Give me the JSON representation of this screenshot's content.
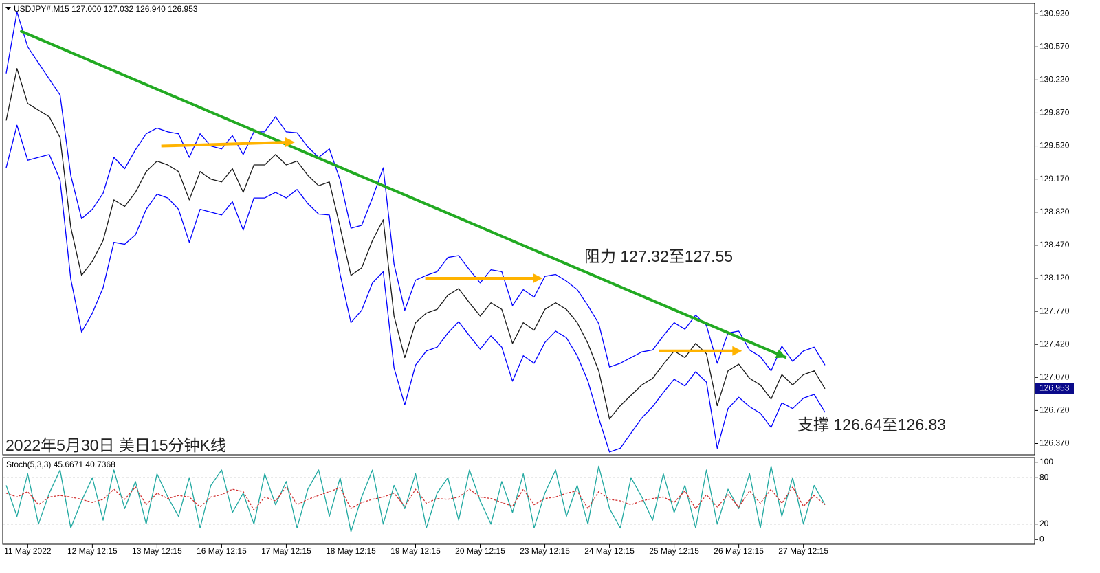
{
  "chart_data": [
    {
      "type": "line",
      "title": "USDJPY#,M15  127.000 127.032 126.940 126.953",
      "categories": [
        null,
        null,
        "11 May 2022",
        null,
        null,
        null,
        null,
        null,
        "12 May 12:15",
        null,
        null,
        null,
        null,
        null,
        "13 May 12:15",
        null,
        null,
        null,
        null,
        null,
        "16 May 12:15",
        null,
        null,
        null,
        null,
        null,
        "17 May 12:15",
        null,
        null,
        null,
        null,
        null,
        "18 May 12:15",
        null,
        null,
        null,
        null,
        null,
        "19 May 12:15",
        null,
        null,
        null,
        null,
        null,
        "20 May 12:15",
        null,
        null,
        null,
        null,
        null,
        "23 May 12:15",
        null,
        null,
        null,
        null,
        null,
        "24 May 12:15",
        null,
        null,
        null,
        null,
        null,
        "25 May 12:15",
        null,
        null,
        null,
        null,
        null,
        "26 May 12:15",
        null,
        null,
        null,
        null,
        null,
        "27 May 12:15",
        null,
        null
      ],
      "series": [
        {
          "color": "#0000ff",
          "values": [
            130.29,
            130.94,
            130.57,
            130.4,
            130.23,
            130.06,
            129.21,
            128.75,
            128.85,
            129.02,
            129.4,
            129.28,
            129.48,
            129.65,
            129.71,
            129.67,
            129.65,
            129.4,
            129.65,
            129.52,
            129.49,
            129.63,
            129.43,
            129.67,
            129.67,
            129.83,
            129.67,
            129.66,
            129.51,
            129.4,
            129.49,
            129.16,
            128.65,
            128.68,
            128.97,
            129.29,
            128.27,
            127.78,
            128.1,
            128.15,
            128.19,
            128.34,
            128.36,
            128.21,
            128.07,
            128.21,
            128.19,
            127.83,
            128.0,
            127.92,
            128.14,
            128.16,
            128.09,
            128.0,
            127.83,
            127.64,
            127.18,
            127.22,
            127.28,
            127.34,
            127.36,
            127.51,
            127.65,
            127.58,
            127.73,
            127.62,
            127.22,
            127.54,
            127.56,
            127.36,
            127.29,
            127.14,
            127.4,
            127.24,
            127.35,
            127.39,
            127.2
          ]
        },
        {
          "color": "#1a1a1a",
          "values": [
            129.79,
            130.34,
            129.97,
            129.9,
            129.83,
            129.61,
            128.66,
            128.15,
            128.3,
            128.52,
            128.95,
            128.88,
            129.03,
            129.25,
            129.36,
            129.32,
            129.25,
            128.95,
            129.25,
            129.17,
            129.14,
            129.28,
            129.03,
            129.32,
            129.32,
            129.43,
            129.32,
            129.36,
            129.21,
            129.1,
            129.14,
            128.66,
            128.15,
            128.23,
            128.52,
            128.74,
            127.72,
            127.28,
            127.65,
            127.75,
            127.79,
            127.94,
            128.01,
            127.86,
            127.72,
            127.86,
            127.79,
            127.43,
            127.65,
            127.57,
            127.79,
            127.86,
            127.79,
            127.65,
            127.43,
            127.14,
            126.63,
            126.77,
            126.88,
            126.99,
            127.06,
            127.21,
            127.35,
            127.28,
            127.43,
            127.32,
            126.77,
            127.14,
            127.21,
            127.06,
            126.99,
            126.84,
            127.1,
            126.99,
            127.1,
            127.14,
            126.95
          ]
        },
        {
          "color": "#0000ff",
          "values": [
            129.29,
            129.74,
            129.37,
            129.4,
            129.43,
            129.16,
            128.11,
            127.55,
            127.75,
            128.02,
            128.5,
            128.48,
            128.58,
            128.85,
            129.01,
            128.97,
            128.85,
            128.5,
            128.85,
            128.82,
            128.79,
            128.93,
            128.63,
            128.97,
            128.97,
            129.03,
            128.97,
            129.06,
            128.91,
            128.8,
            128.79,
            128.16,
            127.65,
            127.78,
            128.07,
            128.19,
            127.17,
            126.78,
            127.2,
            127.35,
            127.39,
            127.54,
            127.66,
            127.51,
            127.37,
            127.51,
            127.39,
            127.03,
            127.3,
            127.22,
            127.44,
            127.56,
            127.49,
            127.3,
            127.03,
            126.64,
            126.28,
            126.32,
            126.48,
            126.64,
            126.76,
            126.91,
            127.05,
            126.98,
            127.13,
            127.02,
            126.32,
            126.74,
            126.86,
            126.76,
            126.69,
            126.54,
            126.8,
            126.74,
            126.85,
            126.89,
            126.7
          ]
        }
      ],
      "ylim": [
        126.25,
        131.03
      ],
      "yticks": [
        {
          "value": 130.92,
          "label": "130.920"
        },
        {
          "value": 130.57,
          "label": "130.570"
        },
        {
          "value": 130.22,
          "label": "130.220"
        },
        {
          "value": 129.87,
          "label": "129.870"
        },
        {
          "value": 129.52,
          "label": "129.520"
        },
        {
          "value": 129.17,
          "label": "129.170"
        },
        {
          "value": 128.82,
          "label": "128.820"
        },
        {
          "value": 128.47,
          "label": "128.470"
        },
        {
          "value": 128.12,
          "label": "128.120"
        },
        {
          "value": 127.77,
          "label": "127.770"
        },
        {
          "value": 127.42,
          "label": "127.420"
        },
        {
          "value": 127.07,
          "label": "127.070"
        },
        {
          "value": 126.72,
          "label": "126.720"
        },
        {
          "value": 126.37,
          "label": "126.370"
        }
      ],
      "last_price": 126.953,
      "annotations": [
        "阻力 127.32至127.55",
        "支撑 126.64至126.83",
        "2022年5月30日 美日15分钟K线"
      ],
      "trendlines": [
        {
          "color": "#22aa22",
          "x": [
            1.3,
            72.4
          ],
          "y": [
            130.74,
            127.28
          ]
        }
      ],
      "arrows": [
        {
          "color": "#ffb300",
          "x": [
            14.4,
            26.8
          ],
          "y": [
            129.52,
            129.56
          ]
        },
        {
          "color": "#ffb300",
          "x": [
            38.9,
            49.8
          ],
          "y": [
            128.12,
            128.12
          ]
        },
        {
          "color": "#ffb300",
          "x": [
            60.6,
            68.3
          ],
          "y": [
            127.35,
            127.35
          ]
        }
      ]
    },
    {
      "type": "line",
      "title": "Stoch(5,3,3) 45.6671 40.7368",
      "series": [
        {
          "color": "#20a8a0",
          "values": [
            70,
            30,
            85,
            20,
            60,
            90,
            15,
            50,
            80,
            25,
            90,
            40,
            75,
            20,
            85,
            55,
            30,
            80,
            15,
            70,
            90,
            35,
            60,
            20,
            85,
            45,
            75,
            15,
            65,
            90,
            30,
            80,
            10,
            55,
            90,
            20,
            70,
            40,
            85,
            15,
            60,
            80,
            25,
            90,
            50,
            20,
            75,
            35,
            85,
            15,
            60,
            90,
            30,
            70,
            20,
            95,
            40,
            15,
            80,
            55,
            25,
            85,
            35,
            70,
            15,
            90,
            20,
            65,
            40,
            85,
            15,
            95,
            30,
            80,
            20,
            70,
            45
          ]
        },
        {
          "color": "#d03030",
          "dash": true,
          "values": [
            60,
            55,
            62,
            45,
            55,
            57,
            55,
            52,
            48,
            52,
            65,
            52,
            68,
            45,
            60,
            53,
            57,
            55,
            42,
            55,
            58,
            65,
            62,
            38,
            55,
            50,
            68,
            45,
            52,
            57,
            62,
            67,
            40,
            48,
            52,
            55,
            60,
            43,
            65,
            47,
            53,
            52,
            55,
            65,
            55,
            53,
            48,
            43,
            65,
            45,
            53,
            55,
            60,
            63,
            40,
            62,
            52,
            50,
            45,
            50,
            53,
            55,
            48,
            63,
            40,
            58,
            42,
            58,
            42,
            63,
            47,
            65,
            47,
            68,
            43,
            57,
            45
          ]
        }
      ],
      "ylim": [
        -6,
        106
      ],
      "yticks": [
        100,
        80,
        20,
        0
      ],
      "levels": [
        80,
        20
      ]
    }
  ]
}
